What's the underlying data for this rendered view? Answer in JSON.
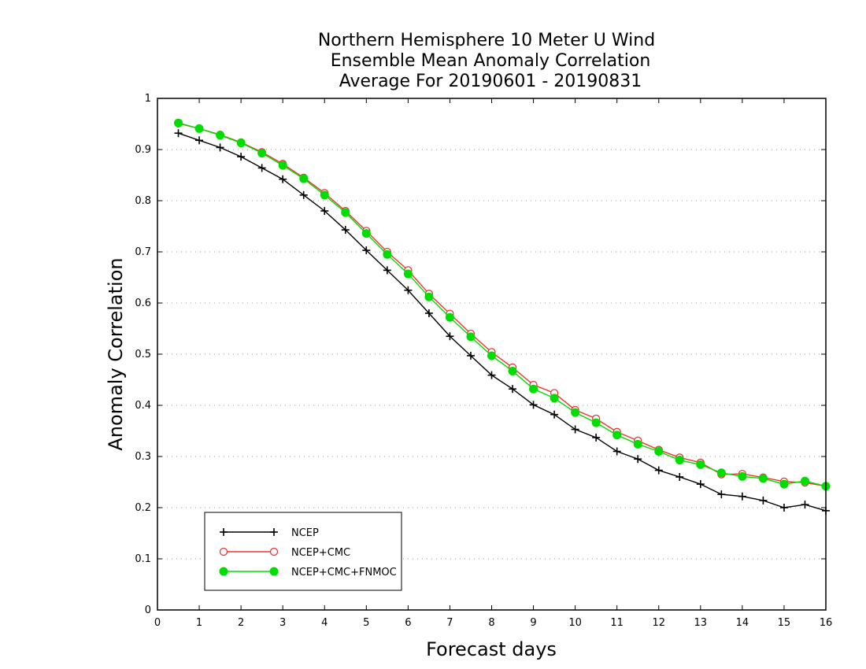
{
  "chart_data": {
    "type": "line",
    "title_lines": [
      "Northern Hemisphere 10 Meter U Wind",
      "Ensemble Mean Anomaly Correlation",
      "Average For 20190601 - 20190831"
    ],
    "xlabel": "Forecast days",
    "ylabel": "Anomaly Correlation",
    "xlim": [
      0,
      16
    ],
    "ylim": [
      0,
      1
    ],
    "xticks": [
      "0",
      "1",
      "2",
      "3",
      "4",
      "5",
      "6",
      "7",
      "8",
      "9",
      "10",
      "11",
      "12",
      "13",
      "14",
      "15",
      "16"
    ],
    "yticks": [
      "0",
      "0.1",
      "0.2",
      "0.3",
      "0.4",
      "0.5",
      "0.6",
      "0.7",
      "0.8",
      "0.9",
      "1"
    ],
    "grid": "horizontal dotted",
    "legend_position": "bottom-left",
    "x": [
      0.5,
      1,
      1.5,
      2,
      2.5,
      3,
      3.5,
      4,
      4.5,
      5,
      5.5,
      6,
      6.5,
      7,
      7.5,
      8,
      8.5,
      9,
      9.5,
      10,
      10.5,
      11,
      11.5,
      12,
      12.5,
      13,
      13.5,
      14,
      14.5,
      15,
      15.5,
      16
    ],
    "series": [
      {
        "name": "NCEP",
        "color": "#000000",
        "marker": "plus",
        "values": [
          0.932,
          0.918,
          0.904,
          0.886,
          0.864,
          0.842,
          0.811,
          0.78,
          0.743,
          0.703,
          0.664,
          0.625,
          0.58,
          0.535,
          0.497,
          0.459,
          0.432,
          0.401,
          0.382,
          0.353,
          0.337,
          0.31,
          0.295,
          0.273,
          0.26,
          0.246,
          0.226,
          0.222,
          0.214,
          0.2,
          0.206,
          0.194
        ]
      },
      {
        "name": "NCEP+CMC",
        "color": "#ee3333",
        "marker": "open-circle",
        "values": [
          0.951,
          0.941,
          0.929,
          0.914,
          0.895,
          0.872,
          0.845,
          0.815,
          0.78,
          0.741,
          0.7,
          0.664,
          0.618,
          0.579,
          0.54,
          0.504,
          0.474,
          0.44,
          0.424,
          0.391,
          0.374,
          0.348,
          0.331,
          0.313,
          0.298,
          0.288,
          0.265,
          0.266,
          0.259,
          0.251,
          0.249,
          0.242
        ]
      },
      {
        "name": "NCEP+CMC+FNMOC",
        "color": "#00dd00",
        "marker": "filled-circle",
        "values": [
          0.952,
          0.941,
          0.928,
          0.913,
          0.893,
          0.869,
          0.843,
          0.811,
          0.777,
          0.736,
          0.695,
          0.657,
          0.612,
          0.572,
          0.534,
          0.497,
          0.467,
          0.432,
          0.414,
          0.386,
          0.366,
          0.342,
          0.324,
          0.31,
          0.293,
          0.284,
          0.268,
          0.261,
          0.257,
          0.246,
          0.252,
          0.242
        ]
      }
    ]
  }
}
